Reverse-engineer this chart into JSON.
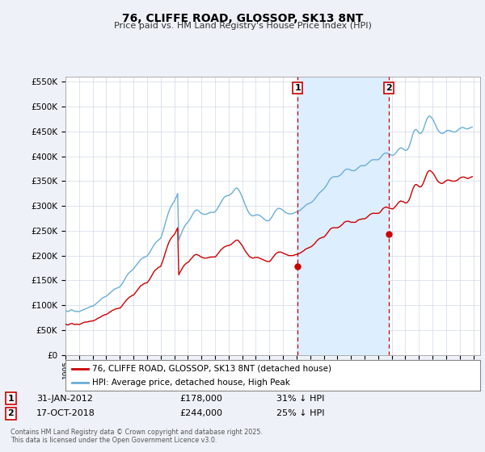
{
  "title": "76, CLIFFE ROAD, GLOSSOP, SK13 8NT",
  "subtitle": "Price paid vs. HM Land Registry's House Price Index (HPI)",
  "ylim": [
    0,
    560000
  ],
  "yticks": [
    0,
    50000,
    100000,
    150000,
    200000,
    250000,
    300000,
    350000,
    400000,
    450000,
    500000,
    550000
  ],
  "xlim_start": 1995.0,
  "xlim_end": 2025.5,
  "bg_color": "#eef2f8",
  "plot_bg_color": "#ffffff",
  "grid_color": "#d0d8e8",
  "hpi_color": "#6aaed6",
  "price_color": "#cc0000",
  "axvspan_color": "#ddeeff",
  "marker1_x": 2012.08,
  "marker2_x": 2018.79,
  "marker1_price": 178000,
  "marker2_price": 244000,
  "marker1_label": "1",
  "marker2_label": "2",
  "marker1_date": "31-JAN-2012",
  "marker2_date": "17-OCT-2018",
  "marker1_pct": "31% ↓ HPI",
  "marker2_pct": "25% ↓ HPI",
  "legend_label_price": "76, CLIFFE ROAD, GLOSSOP, SK13 8NT (detached house)",
  "legend_label_hpi": "HPI: Average price, detached house, High Peak",
  "footer": "Contains HM Land Registry data © Crown copyright and database right 2025.\nThis data is licensed under the Open Government Licence v3.0.",
  "hpi_data_x": [
    1995.0,
    1995.083,
    1995.167,
    1995.25,
    1995.333,
    1995.417,
    1995.5,
    1995.583,
    1995.667,
    1995.75,
    1995.833,
    1995.917,
    1996.0,
    1996.083,
    1996.167,
    1996.25,
    1996.333,
    1996.417,
    1996.5,
    1996.583,
    1996.667,
    1996.75,
    1996.833,
    1996.917,
    1997.0,
    1997.083,
    1997.167,
    1997.25,
    1997.333,
    1997.417,
    1997.5,
    1997.583,
    1997.667,
    1997.75,
    1997.833,
    1997.917,
    1998.0,
    1998.083,
    1998.167,
    1998.25,
    1998.333,
    1998.417,
    1998.5,
    1998.583,
    1998.667,
    1998.75,
    1998.833,
    1998.917,
    1999.0,
    1999.083,
    1999.167,
    1999.25,
    1999.333,
    1999.417,
    1999.5,
    1999.583,
    1999.667,
    1999.75,
    1999.833,
    1999.917,
    2000.0,
    2000.083,
    2000.167,
    2000.25,
    2000.333,
    2000.417,
    2000.5,
    2000.583,
    2000.667,
    2000.75,
    2000.833,
    2000.917,
    2001.0,
    2001.083,
    2001.167,
    2001.25,
    2001.333,
    2001.417,
    2001.5,
    2001.583,
    2001.667,
    2001.75,
    2001.833,
    2001.917,
    2002.0,
    2002.083,
    2002.167,
    2002.25,
    2002.333,
    2002.417,
    2002.5,
    2002.583,
    2002.667,
    2002.75,
    2002.833,
    2002.917,
    2003.0,
    2003.083,
    2003.167,
    2003.25,
    2003.333,
    2003.417,
    2003.5,
    2003.583,
    2003.667,
    2003.75,
    2003.833,
    2003.917,
    2004.0,
    2004.083,
    2004.167,
    2004.25,
    2004.333,
    2004.417,
    2004.5,
    2004.583,
    2004.667,
    2004.75,
    2004.833,
    2004.917,
    2005.0,
    2005.083,
    2005.167,
    2005.25,
    2005.333,
    2005.417,
    2005.5,
    2005.583,
    2005.667,
    2005.75,
    2005.833,
    2005.917,
    2006.0,
    2006.083,
    2006.167,
    2006.25,
    2006.333,
    2006.417,
    2006.5,
    2006.583,
    2006.667,
    2006.75,
    2006.833,
    2006.917,
    2007.0,
    2007.083,
    2007.167,
    2007.25,
    2007.333,
    2007.417,
    2007.5,
    2007.583,
    2007.667,
    2007.75,
    2007.833,
    2007.917,
    2008.0,
    2008.083,
    2008.167,
    2008.25,
    2008.333,
    2008.417,
    2008.5,
    2008.583,
    2008.667,
    2008.75,
    2008.833,
    2008.917,
    2009.0,
    2009.083,
    2009.167,
    2009.25,
    2009.333,
    2009.417,
    2009.5,
    2009.583,
    2009.667,
    2009.75,
    2009.833,
    2009.917,
    2010.0,
    2010.083,
    2010.167,
    2010.25,
    2010.333,
    2010.417,
    2010.5,
    2010.583,
    2010.667,
    2010.75,
    2010.833,
    2010.917,
    2011.0,
    2011.083,
    2011.167,
    2011.25,
    2011.333,
    2011.417,
    2011.5,
    2011.583,
    2011.667,
    2011.75,
    2011.833,
    2011.917,
    2012.0,
    2012.083,
    2012.167,
    2012.25,
    2012.333,
    2012.417,
    2012.5,
    2012.583,
    2012.667,
    2012.75,
    2012.833,
    2012.917,
    2013.0,
    2013.083,
    2013.167,
    2013.25,
    2013.333,
    2013.417,
    2013.5,
    2013.583,
    2013.667,
    2013.75,
    2013.833,
    2013.917,
    2014.0,
    2014.083,
    2014.167,
    2014.25,
    2014.333,
    2014.417,
    2014.5,
    2014.583,
    2014.667,
    2014.75,
    2014.833,
    2014.917,
    2015.0,
    2015.083,
    2015.167,
    2015.25,
    2015.333,
    2015.417,
    2015.5,
    2015.583,
    2015.667,
    2015.75,
    2015.833,
    2015.917,
    2016.0,
    2016.083,
    2016.167,
    2016.25,
    2016.333,
    2016.417,
    2016.5,
    2016.583,
    2016.667,
    2016.75,
    2016.833,
    2016.917,
    2017.0,
    2017.083,
    2017.167,
    2017.25,
    2017.333,
    2017.417,
    2017.5,
    2017.583,
    2017.667,
    2017.75,
    2017.833,
    2017.917,
    2018.0,
    2018.083,
    2018.167,
    2018.25,
    2018.333,
    2018.417,
    2018.5,
    2018.583,
    2018.667,
    2018.75,
    2018.833,
    2018.917,
    2019.0,
    2019.083,
    2019.167,
    2019.25,
    2019.333,
    2019.417,
    2019.5,
    2019.583,
    2019.667,
    2019.75,
    2019.833,
    2019.917,
    2020.0,
    2020.083,
    2020.167,
    2020.25,
    2020.333,
    2020.417,
    2020.5,
    2020.583,
    2020.667,
    2020.75,
    2020.833,
    2020.917,
    2021.0,
    2021.083,
    2021.167,
    2021.25,
    2021.333,
    2021.417,
    2021.5,
    2021.583,
    2021.667,
    2021.75,
    2021.833,
    2021.917,
    2022.0,
    2022.083,
    2022.167,
    2022.25,
    2022.333,
    2022.417,
    2022.5,
    2022.583,
    2022.667,
    2022.75,
    2022.833,
    2022.917,
    2023.0,
    2023.083,
    2023.167,
    2023.25,
    2023.333,
    2023.417,
    2023.5,
    2023.583,
    2023.667,
    2023.75,
    2023.833,
    2023.917,
    2024.0,
    2024.083,
    2024.167,
    2024.25,
    2024.333,
    2024.417,
    2024.5,
    2024.583,
    2024.667,
    2024.75,
    2024.833,
    2024.917
  ],
  "hpi_data_y": [
    90000,
    88000,
    87000,
    88000,
    89000,
    91000,
    90000,
    89000,
    88000,
    87000,
    88000,
    87000,
    87000,
    88000,
    89000,
    90000,
    91000,
    92000,
    93000,
    94000,
    95000,
    96000,
    97000,
    98000,
    98000,
    99000,
    101000,
    103000,
    105000,
    107000,
    109000,
    111000,
    113000,
    115000,
    116000,
    117000,
    118000,
    120000,
    122000,
    124000,
    126000,
    128000,
    130000,
    132000,
    133000,
    134000,
    135000,
    136000,
    137000,
    140000,
    143000,
    147000,
    151000,
    155000,
    159000,
    162000,
    165000,
    167000,
    169000,
    171000,
    173000,
    176000,
    179000,
    182000,
    185000,
    188000,
    191000,
    193000,
    195000,
    196000,
    197000,
    198000,
    199000,
    202000,
    205000,
    209000,
    213000,
    217000,
    221000,
    224000,
    227000,
    229000,
    231000,
    233000,
    235000,
    241000,
    248000,
    256000,
    264000,
    272000,
    280000,
    287000,
    293000,
    298000,
    302000,
    306000,
    309000,
    314000,
    319000,
    325000,
    231000,
    237000,
    243000,
    249000,
    254000,
    258000,
    262000,
    265000,
    267000,
    270000,
    274000,
    278000,
    282000,
    286000,
    289000,
    291000,
    292000,
    291000,
    289000,
    287000,
    285000,
    284000,
    283000,
    283000,
    283000,
    284000,
    285000,
    286000,
    287000,
    287000,
    287000,
    287000,
    288000,
    291000,
    294000,
    298000,
    302000,
    306000,
    310000,
    314000,
    317000,
    319000,
    320000,
    321000,
    321000,
    322000,
    324000,
    326000,
    329000,
    332000,
    335000,
    336000,
    335000,
    332000,
    328000,
    323000,
    318000,
    312000,
    306000,
    300000,
    295000,
    290000,
    286000,
    283000,
    281000,
    280000,
    280000,
    281000,
    282000,
    282000,
    282000,
    281000,
    280000,
    278000,
    276000,
    274000,
    272000,
    271000,
    270000,
    270000,
    271000,
    274000,
    277000,
    281000,
    285000,
    289000,
    292000,
    294000,
    295000,
    295000,
    294000,
    293000,
    291000,
    289000,
    287000,
    286000,
    285000,
    284000,
    284000,
    284000,
    284000,
    285000,
    286000,
    287000,
    288000,
    289000,
    290000,
    291000,
    293000,
    295000,
    297000,
    299000,
    301000,
    303000,
    304000,
    305000,
    306000,
    307000,
    309000,
    311000,
    314000,
    317000,
    320000,
    323000,
    326000,
    328000,
    330000,
    332000,
    334000,
    337000,
    340000,
    344000,
    348000,
    352000,
    355000,
    357000,
    358000,
    359000,
    359000,
    359000,
    359000,
    360000,
    361000,
    363000,
    365000,
    368000,
    371000,
    373000,
    374000,
    374000,
    374000,
    373000,
    372000,
    371000,
    371000,
    371000,
    372000,
    374000,
    376000,
    378000,
    380000,
    381000,
    381000,
    381000,
    381000,
    382000,
    384000,
    386000,
    388000,
    390000,
    392000,
    393000,
    393000,
    393000,
    393000,
    393000,
    393000,
    395000,
    397000,
    400000,
    403000,
    405000,
    406000,
    407000,
    406000,
    405000,
    404000,
    403000,
    402000,
    402000,
    403000,
    405000,
    408000,
    411000,
    414000,
    416000,
    417000,
    416000,
    415000,
    413000,
    412000,
    412000,
    414000,
    418000,
    424000,
    432000,
    440000,
    447000,
    452000,
    454000,
    453000,
    450000,
    447000,
    446000,
    447000,
    450000,
    455000,
    462000,
    469000,
    475000,
    479000,
    481000,
    480000,
    478000,
    475000,
    471000,
    466000,
    461000,
    456000,
    452000,
    449000,
    447000,
    446000,
    446000,
    447000,
    449000,
    451000,
    452000,
    452000,
    452000,
    451000,
    450000,
    449000,
    449000,
    449000,
    450000,
    452000,
    454000,
    456000,
    457000,
    458000,
    458000,
    457000,
    456000,
    455000,
    455000,
    456000,
    457000,
    458000,
    459000
  ],
  "price_data_x": [
    1995.0,
    1995.083,
    1995.167,
    1995.25,
    1995.333,
    1995.417,
    1995.5,
    1995.583,
    1995.667,
    1995.75,
    1995.833,
    1995.917,
    1996.0,
    1996.083,
    1996.167,
    1996.25,
    1996.333,
    1996.417,
    1996.5,
    1996.583,
    1996.667,
    1996.75,
    1996.833,
    1996.917,
    1997.0,
    1997.083,
    1997.167,
    1997.25,
    1997.333,
    1997.417,
    1997.5,
    1997.583,
    1997.667,
    1997.75,
    1997.833,
    1997.917,
    1998.0,
    1998.083,
    1998.167,
    1998.25,
    1998.333,
    1998.417,
    1998.5,
    1998.583,
    1998.667,
    1998.75,
    1998.833,
    1998.917,
    1999.0,
    1999.083,
    1999.167,
    1999.25,
    1999.333,
    1999.417,
    1999.5,
    1999.583,
    1999.667,
    1999.75,
    1999.833,
    1999.917,
    2000.0,
    2000.083,
    2000.167,
    2000.25,
    2000.333,
    2000.417,
    2000.5,
    2000.583,
    2000.667,
    2000.75,
    2000.833,
    2000.917,
    2001.0,
    2001.083,
    2001.167,
    2001.25,
    2001.333,
    2001.417,
    2001.5,
    2001.583,
    2001.667,
    2001.75,
    2001.833,
    2001.917,
    2002.0,
    2002.083,
    2002.167,
    2002.25,
    2002.333,
    2002.417,
    2002.5,
    2002.583,
    2002.667,
    2002.75,
    2002.833,
    2002.917,
    2003.0,
    2003.083,
    2003.167,
    2003.25,
    2003.333,
    2003.417,
    2003.5,
    2003.583,
    2003.667,
    2003.75,
    2003.833,
    2003.917,
    2004.0,
    2004.083,
    2004.167,
    2004.25,
    2004.333,
    2004.417,
    2004.5,
    2004.583,
    2004.667,
    2004.75,
    2004.833,
    2004.917,
    2005.0,
    2005.083,
    2005.167,
    2005.25,
    2005.333,
    2005.417,
    2005.5,
    2005.583,
    2005.667,
    2005.75,
    2005.833,
    2005.917,
    2006.0,
    2006.083,
    2006.167,
    2006.25,
    2006.333,
    2006.417,
    2006.5,
    2006.583,
    2006.667,
    2006.75,
    2006.833,
    2006.917,
    2007.0,
    2007.083,
    2007.167,
    2007.25,
    2007.333,
    2007.417,
    2007.5,
    2007.583,
    2007.667,
    2007.75,
    2007.833,
    2007.917,
    2008.0,
    2008.083,
    2008.167,
    2008.25,
    2008.333,
    2008.417,
    2008.5,
    2008.583,
    2008.667,
    2008.75,
    2008.833,
    2008.917,
    2009.0,
    2009.083,
    2009.167,
    2009.25,
    2009.333,
    2009.417,
    2009.5,
    2009.583,
    2009.667,
    2009.75,
    2009.833,
    2009.917,
    2010.0,
    2010.083,
    2010.167,
    2010.25,
    2010.333,
    2010.417,
    2010.5,
    2010.583,
    2010.667,
    2010.75,
    2010.833,
    2010.917,
    2011.0,
    2011.083,
    2011.167,
    2011.25,
    2011.333,
    2011.417,
    2011.5,
    2011.583,
    2011.667,
    2011.75,
    2011.833,
    2011.917,
    2012.0,
    2012.083,
    2012.167,
    2012.25,
    2012.333,
    2012.417,
    2012.5,
    2012.583,
    2012.667,
    2012.75,
    2012.833,
    2012.917,
    2013.0,
    2013.083,
    2013.167,
    2013.25,
    2013.333,
    2013.417,
    2013.5,
    2013.583,
    2013.667,
    2013.75,
    2013.833,
    2013.917,
    2014.0,
    2014.083,
    2014.167,
    2014.25,
    2014.333,
    2014.417,
    2014.5,
    2014.583,
    2014.667,
    2014.75,
    2014.833,
    2014.917,
    2015.0,
    2015.083,
    2015.167,
    2015.25,
    2015.333,
    2015.417,
    2015.5,
    2015.583,
    2015.667,
    2015.75,
    2015.833,
    2015.917,
    2016.0,
    2016.083,
    2016.167,
    2016.25,
    2016.333,
    2016.417,
    2016.5,
    2016.583,
    2016.667,
    2016.75,
    2016.833,
    2016.917,
    2017.0,
    2017.083,
    2017.167,
    2017.25,
    2017.333,
    2017.417,
    2017.5,
    2017.583,
    2017.667,
    2017.75,
    2017.833,
    2017.917,
    2018.0,
    2018.083,
    2018.167,
    2018.25,
    2018.333,
    2018.417,
    2018.5,
    2018.583,
    2018.667,
    2018.75,
    2018.833,
    2018.917,
    2019.0,
    2019.083,
    2019.167,
    2019.25,
    2019.333,
    2019.417,
    2019.5,
    2019.583,
    2019.667,
    2019.75,
    2019.833,
    2019.917,
    2020.0,
    2020.083,
    2020.167,
    2020.25,
    2020.333,
    2020.417,
    2020.5,
    2020.583,
    2020.667,
    2020.75,
    2020.833,
    2020.917,
    2021.0,
    2021.083,
    2021.167,
    2021.25,
    2021.333,
    2021.417,
    2021.5,
    2021.583,
    2021.667,
    2021.75,
    2021.833,
    2021.917,
    2022.0,
    2022.083,
    2022.167,
    2022.25,
    2022.333,
    2022.417,
    2022.5,
    2022.583,
    2022.667,
    2022.75,
    2022.833,
    2022.917,
    2023.0,
    2023.083,
    2023.167,
    2023.25,
    2023.333,
    2023.417,
    2023.5,
    2023.583,
    2023.667,
    2023.75,
    2023.833,
    2023.917,
    2024.0,
    2024.083,
    2024.167,
    2024.25,
    2024.333,
    2024.417,
    2024.5,
    2024.583,
    2024.667,
    2024.75,
    2024.833,
    2024.917
  ],
  "price_data_y": [
    62000,
    61000,
    60000,
    61000,
    62000,
    63000,
    63000,
    62000,
    61000,
    61000,
    62000,
    61000,
    61000,
    62000,
    63000,
    64000,
    65000,
    66000,
    66000,
    66000,
    67000,
    67000,
    68000,
    68000,
    68000,
    69000,
    70000,
    71000,
    73000,
    74000,
    75000,
    76000,
    78000,
    79000,
    80000,
    81000,
    81000,
    83000,
    84000,
    86000,
    87000,
    89000,
    90000,
    91000,
    92000,
    93000,
    93000,
    94000,
    94000,
    96000,
    99000,
    102000,
    105000,
    108000,
    111000,
    113000,
    115000,
    117000,
    118000,
    120000,
    120000,
    123000,
    126000,
    129000,
    132000,
    135000,
    138000,
    140000,
    141000,
    143000,
    144000,
    145000,
    145000,
    148000,
    151000,
    155000,
    159000,
    163000,
    167000,
    170000,
    172000,
    174000,
    176000,
    177000,
    178000,
    184000,
    190000,
    197000,
    205000,
    212000,
    219000,
    225000,
    230000,
    234000,
    237000,
    240000,
    242000,
    246000,
    251000,
    256000,
    161000,
    166000,
    170000,
    174000,
    178000,
    181000,
    183000,
    185000,
    186000,
    188000,
    191000,
    194000,
    196000,
    199000,
    201000,
    202000,
    202000,
    201000,
    200000,
    198000,
    197000,
    196000,
    195000,
    195000,
    195000,
    195000,
    196000,
    196000,
    197000,
    197000,
    197000,
    197000,
    197000,
    199000,
    202000,
    205000,
    208000,
    211000,
    213000,
    215000,
    217000,
    218000,
    219000,
    220000,
    220000,
    221000,
    222000,
    224000,
    226000,
    228000,
    230000,
    231000,
    231000,
    229000,
    226000,
    223000,
    220000,
    216000,
    212000,
    208000,
    205000,
    202000,
    199000,
    197000,
    196000,
    195000,
    195000,
    196000,
    196000,
    196000,
    196000,
    195000,
    194000,
    193000,
    192000,
    191000,
    190000,
    189000,
    188000,
    188000,
    188000,
    190000,
    193000,
    196000,
    199000,
    202000,
    204000,
    206000,
    207000,
    207000,
    207000,
    206000,
    205000,
    204000,
    203000,
    202000,
    201000,
    200000,
    200000,
    200000,
    200000,
    200000,
    201000,
    202000,
    202000,
    203000,
    204000,
    205000,
    206000,
    208000,
    209000,
    211000,
    213000,
    214000,
    215000,
    216000,
    217000,
    218000,
    220000,
    222000,
    224000,
    227000,
    230000,
    232000,
    234000,
    235000,
    236000,
    237000,
    237000,
    239000,
    242000,
    245000,
    248000,
    251000,
    254000,
    255000,
    256000,
    256000,
    256000,
    256000,
    256000,
    257000,
    258000,
    260000,
    262000,
    264000,
    267000,
    268000,
    269000,
    269000,
    269000,
    268000,
    267000,
    267000,
    267000,
    267000,
    267000,
    269000,
    271000,
    272000,
    273000,
    273000,
    274000,
    274000,
    274000,
    275000,
    277000,
    279000,
    281000,
    283000,
    284000,
    285000,
    285000,
    285000,
    285000,
    285000,
    285000,
    286000,
    288000,
    291000,
    294000,
    296000,
    297000,
    298000,
    297000,
    296000,
    295000,
    295000,
    294000,
    294000,
    296000,
    298000,
    301000,
    304000,
    307000,
    309000,
    310000,
    309000,
    309000,
    307000,
    306000,
    306000,
    308000,
    311000,
    316000,
    323000,
    330000,
    336000,
    341000,
    343000,
    343000,
    341000,
    339000,
    338000,
    339000,
    342000,
    347000,
    353000,
    359000,
    365000,
    369000,
    371000,
    371000,
    369000,
    367000,
    364000,
    360000,
    356000,
    352000,
    349000,
    347000,
    346000,
    345000,
    346000,
    347000,
    349000,
    351000,
    352000,
    352000,
    352000,
    351000,
    350000,
    350000,
    350000,
    350000,
    351000,
    352000,
    354000,
    356000,
    357000,
    358000,
    358000,
    358000,
    357000,
    356000,
    355000,
    356000,
    357000,
    358000,
    359000
  ]
}
